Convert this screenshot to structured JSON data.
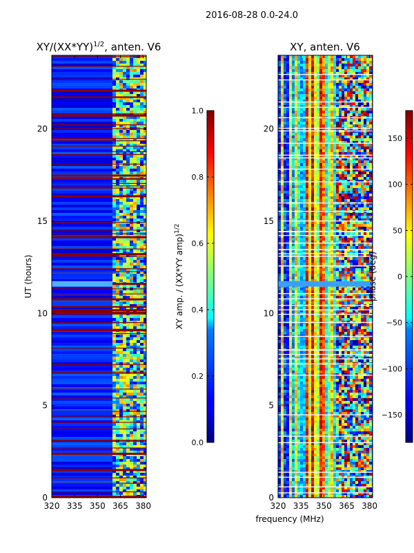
{
  "suptitle": "2016-08-28 0.0-24.0",
  "chart_data": [
    {
      "type": "heatmap",
      "title_main": "XY/(XX*YY)",
      "title_exp": "1/2",
      "title_suffix": ", anten. V6",
      "xlabel": "",
      "ylabel": "UT (hours)",
      "x_ticks": [
        320,
        335,
        350,
        365,
        380
      ],
      "x_range": [
        320,
        382
      ],
      "y_ticks": [
        0,
        5,
        10,
        15,
        20
      ],
      "y_range": [
        0,
        24
      ],
      "colorbar": {
        "label_main": "XY amp. / (XX*YY amp)",
        "label_exp": "1/2",
        "ticks": [
          "0.0",
          "0.2",
          "0.4",
          "0.6",
          "0.8",
          "1.0"
        ],
        "tick_values": [
          0,
          0.2,
          0.4,
          0.6,
          0.8,
          1.0
        ],
        "range": [
          0,
          1
        ],
        "colormap": "jet"
      }
    },
    {
      "type": "heatmap",
      "title": "XY, anten. V6",
      "xlabel": "frequency (MHz)",
      "ylabel": "",
      "x_ticks": [
        320,
        335,
        350,
        365,
        380
      ],
      "x_range": [
        320,
        382
      ],
      "y_ticks": [
        0,
        5,
        10,
        15,
        20
      ],
      "y_range": [
        0,
        24
      ],
      "colorbar": {
        "label": "phase (deg)",
        "ticks": [
          "150",
          "100",
          "50",
          "0",
          "−50",
          "−100",
          "−150"
        ],
        "tick_values": [
          150,
          100,
          50,
          0,
          -50,
          -100,
          -150
        ],
        "range": [
          -180,
          180
        ],
        "colormap": "jet"
      }
    }
  ],
  "colors": {
    "jet_dark_blue": "#00007f",
    "jet_blue": "#0000ff",
    "jet_cyan": "#00ffff",
    "jet_yellow": "#ffff00",
    "jet_red": "#ff0000",
    "jet_dark_red": "#7f0000",
    "flagged_line": "#ffffff"
  }
}
